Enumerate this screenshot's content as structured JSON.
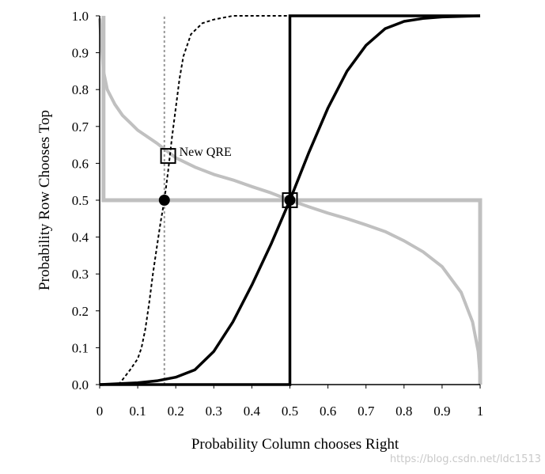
{
  "chart_data": {
    "type": "line",
    "title": "",
    "xlabel": "Probability Column chooses Right",
    "ylabel": "Probability Row Chooses Top",
    "xlim": [
      0,
      1
    ],
    "ylim": [
      0,
      1
    ],
    "x_ticks": [
      "0",
      "0.1",
      "0.2",
      "0.3",
      "0.4",
      "0.5",
      "0.6",
      "0.7",
      "0.8",
      "0.9",
      "1"
    ],
    "y_ticks": [
      "0.0",
      "0.1",
      "0.2",
      "0.3",
      "0.4",
      "0.5",
      "0.6",
      "0.7",
      "0.8",
      "0.9",
      "1.0"
    ],
    "grid": false,
    "series": [
      {
        "style": "gray-thick",
        "color": "#c0c0c0",
        "points": [
          [
            0.01,
            1.0
          ],
          [
            0.01,
            0.5
          ],
          [
            1.0,
            0.5
          ],
          [
            1.0,
            0.0
          ]
        ]
      },
      {
        "style": "black-thick",
        "color": "#000000",
        "points": [
          [
            0.0,
            0.0
          ],
          [
            0.5,
            0.0
          ],
          [
            0.5,
            1.0
          ],
          [
            1.0,
            1.0
          ]
        ]
      },
      {
        "style": "gray-curve",
        "color": "#c0c0c0",
        "points": [
          [
            0.0,
            0.99
          ],
          [
            0.005,
            0.92
          ],
          [
            0.01,
            0.85
          ],
          [
            0.02,
            0.8
          ],
          [
            0.04,
            0.76
          ],
          [
            0.06,
            0.73
          ],
          [
            0.08,
            0.71
          ],
          [
            0.1,
            0.69
          ],
          [
            0.15,
            0.655
          ],
          [
            0.2,
            0.615
          ],
          [
            0.25,
            0.59
          ],
          [
            0.3,
            0.57
          ],
          [
            0.35,
            0.555
          ],
          [
            0.4,
            0.537
          ],
          [
            0.45,
            0.52
          ],
          [
            0.5,
            0.5
          ],
          [
            0.55,
            0.482
          ],
          [
            0.6,
            0.465
          ],
          [
            0.65,
            0.45
          ],
          [
            0.7,
            0.433
          ],
          [
            0.75,
            0.415
          ],
          [
            0.8,
            0.39
          ],
          [
            0.85,
            0.36
          ],
          [
            0.9,
            0.32
          ],
          [
            0.95,
            0.25
          ],
          [
            0.98,
            0.17
          ],
          [
            0.995,
            0.09
          ],
          [
            1.0,
            0.02
          ]
        ]
      },
      {
        "style": "black-curve",
        "color": "#000000",
        "points": [
          [
            0.0,
            0.0
          ],
          [
            0.1,
            0.005
          ],
          [
            0.15,
            0.01
          ],
          [
            0.2,
            0.02
          ],
          [
            0.25,
            0.04
          ],
          [
            0.3,
            0.09
          ],
          [
            0.35,
            0.17
          ],
          [
            0.4,
            0.27
          ],
          [
            0.45,
            0.38
          ],
          [
            0.5,
            0.5
          ],
          [
            0.55,
            0.63
          ],
          [
            0.6,
            0.75
          ],
          [
            0.65,
            0.85
          ],
          [
            0.7,
            0.92
          ],
          [
            0.75,
            0.965
          ],
          [
            0.8,
            0.985
          ],
          [
            0.85,
            0.993
          ],
          [
            0.9,
            0.997
          ],
          [
            1.0,
            1.0
          ]
        ]
      },
      {
        "style": "black-dashed",
        "color": "#000000",
        "points": [
          [
            0.05,
            0.0
          ],
          [
            0.08,
            0.04
          ],
          [
            0.1,
            0.07
          ],
          [
            0.11,
            0.1
          ],
          [
            0.12,
            0.15
          ],
          [
            0.13,
            0.22
          ],
          [
            0.14,
            0.3
          ],
          [
            0.15,
            0.37
          ],
          [
            0.16,
            0.44
          ],
          [
            0.17,
            0.5
          ],
          [
            0.18,
            0.58
          ],
          [
            0.19,
            0.67
          ],
          [
            0.2,
            0.75
          ],
          [
            0.21,
            0.83
          ],
          [
            0.22,
            0.89
          ],
          [
            0.24,
            0.95
          ],
          [
            0.27,
            0.98
          ],
          [
            0.3,
            0.99
          ],
          [
            0.35,
            1.0
          ],
          [
            0.5,
            1.0
          ]
        ]
      },
      {
        "style": "gray-dotted",
        "color": "#999999",
        "points": [
          [
            0.17,
            0.0
          ],
          [
            0.17,
            1.0
          ]
        ]
      }
    ],
    "markers": [
      {
        "shape": "filled-circle",
        "x": 0.17,
        "y": 0.5
      },
      {
        "shape": "filled-circle",
        "x": 0.5,
        "y": 0.5
      },
      {
        "shape": "open-square",
        "x": 0.5,
        "y": 0.5
      },
      {
        "shape": "open-square",
        "x": 0.18,
        "y": 0.62
      }
    ],
    "annotations": [
      {
        "text": "New QRE",
        "x": 0.18,
        "y": 0.62
      }
    ]
  },
  "watermark": "https://blog.csdn.net/ldc1513"
}
